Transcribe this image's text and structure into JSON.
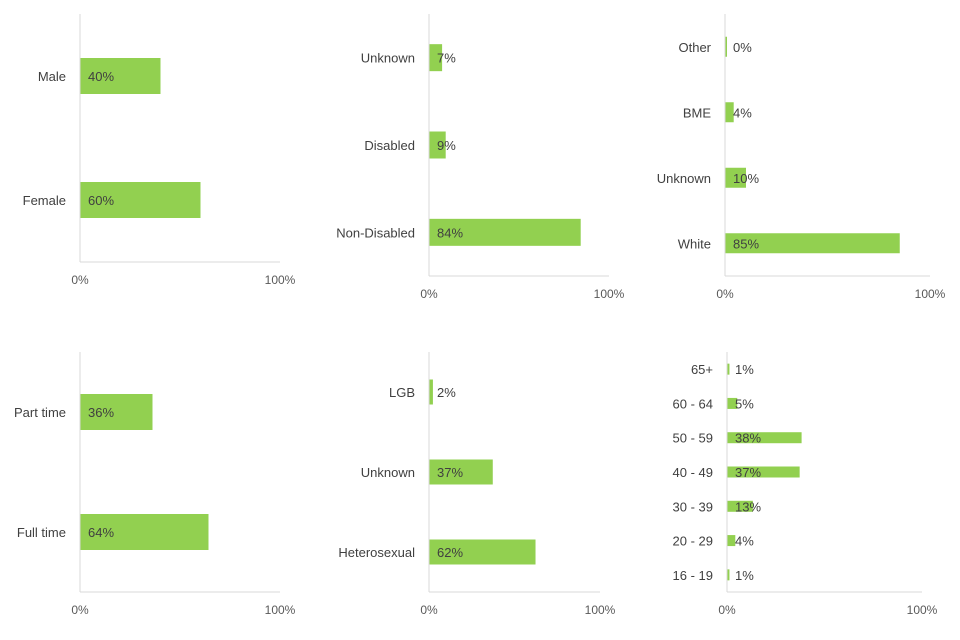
{
  "colors": {
    "bar": "#92D050",
    "axis": "#D9D9D9",
    "text": "#404040"
  },
  "chart_data": [
    {
      "type": "bar",
      "orientation": "horizontal",
      "categories": [
        "Male",
        "Female"
      ],
      "values": [
        40,
        60
      ],
      "value_labels": [
        "40%",
        "60%"
      ],
      "xlim": [
        0,
        100
      ],
      "x_ticks": [
        "0%",
        "100%"
      ],
      "grid": false,
      "legend": "none"
    },
    {
      "type": "bar",
      "orientation": "horizontal",
      "categories": [
        "Unknown",
        "Disabled",
        "Non-Disabled"
      ],
      "values": [
        7,
        9,
        84
      ],
      "value_labels": [
        "7%",
        "9%",
        "84%"
      ],
      "xlim": [
        0,
        100
      ],
      "x_ticks": [
        "0%",
        "100%"
      ],
      "grid": false,
      "legend": "none"
    },
    {
      "type": "bar",
      "orientation": "horizontal",
      "categories": [
        "Other",
        "BME",
        "Unknown",
        "White"
      ],
      "values": [
        0,
        4,
        10,
        85
      ],
      "value_labels": [
        "0%",
        "4%",
        "10%",
        "85%"
      ],
      "xlim": [
        0,
        100
      ],
      "x_ticks": [
        "0%",
        "100%"
      ],
      "grid": false,
      "legend": "none"
    },
    {
      "type": "bar",
      "orientation": "horizontal",
      "categories": [
        "Part time",
        "Full time"
      ],
      "values": [
        36,
        64
      ],
      "value_labels": [
        "36%",
        "64%"
      ],
      "xlim": [
        0,
        100
      ],
      "x_ticks": [
        "0%",
        "100%"
      ],
      "grid": false,
      "legend": "none"
    },
    {
      "type": "bar",
      "orientation": "horizontal",
      "categories": [
        "LGB",
        "Unknown",
        "Heterosexual"
      ],
      "values": [
        2,
        37,
        62
      ],
      "value_labels": [
        "2%",
        "37%",
        "62%"
      ],
      "xlim": [
        0,
        100
      ],
      "x_ticks": [
        "0%",
        "100%"
      ],
      "grid": false,
      "legend": "none"
    },
    {
      "type": "bar",
      "orientation": "horizontal",
      "categories": [
        "65+",
        "60 - 64",
        "50 - 59",
        "40 - 49",
        "30 - 39",
        "20 - 29",
        "16 - 19"
      ],
      "values": [
        1,
        5,
        38,
        37,
        13,
        4,
        1
      ],
      "value_labels": [
        "1%",
        "5%",
        "38%",
        "37%",
        "13%",
        "4%",
        "1%"
      ],
      "xlim": [
        0,
        100
      ],
      "x_ticks": [
        "0%",
        "100%"
      ],
      "grid": false,
      "legend": "none"
    }
  ]
}
